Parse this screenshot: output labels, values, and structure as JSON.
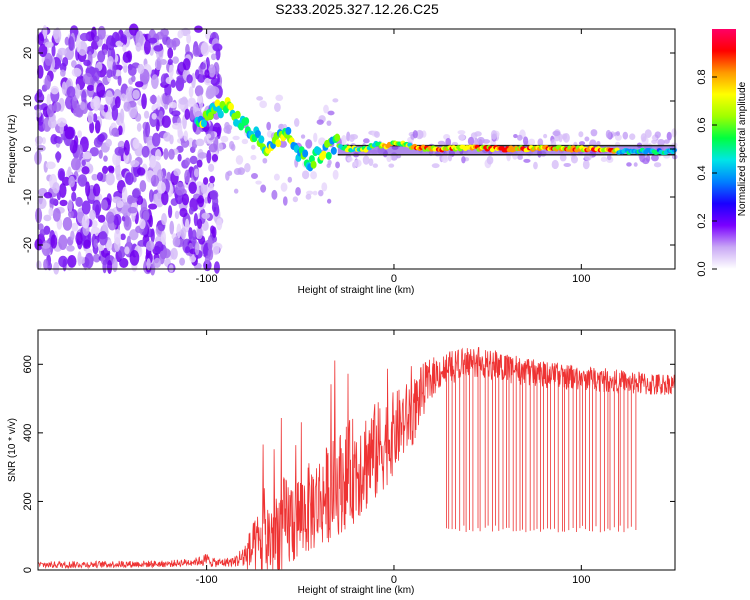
{
  "chart_data": [
    {
      "type": "heatmap",
      "title": "S233.2025.327.12.26.C25",
      "xlabel": "Height of straight line (km)",
      "ylabel": "Frequency (Hz)",
      "xlim": [
        -190,
        150
      ],
      "ylim": [
        -25,
        25
      ],
      "x_ticks": [
        -100,
        0,
        100
      ],
      "y_ticks": [
        -20,
        -10,
        0,
        10,
        20
      ],
      "colorbar": {
        "label": "Normalized spectral amplitude",
        "range": [
          0,
          1
        ],
        "ticks": [
          "0.0",
          "0.2",
          "0.4",
          "0.6",
          "0.8"
        ],
        "colors": [
          "#ffffff",
          "#c9a8f5",
          "#7a00ff",
          "#1a00ff",
          "#0080ff",
          "#00e6e6",
          "#00ff40",
          "#a0ff00",
          "#ffff00",
          "#ff9900",
          "#ff0000",
          "#ff0066"
        ]
      },
      "ridge_line": {
        "x": [
          -105,
          -97,
          -90,
          -85,
          -80,
          -75,
          -70,
          -65,
          -60,
          -55,
          -50,
          -45,
          -40,
          -35,
          -30,
          -25,
          -20,
          -15,
          -10,
          -5,
          0,
          5,
          10,
          20,
          40,
          60,
          80,
          100,
          115,
          120,
          150
        ],
        "y": [
          5,
          8,
          9,
          7,
          5,
          3,
          1,
          0,
          4,
          2,
          -1,
          -3,
          -1,
          0,
          1,
          0,
          0,
          0,
          1,
          0.5,
          1.5,
          1,
          0.5,
          0,
          0.2,
          0,
          0.1,
          0,
          0,
          -0.5,
          -0.5
        ]
      },
      "noise_region_x": [
        -190,
        -105
      ],
      "clean_line_x": [
        -30,
        150
      ]
    },
    {
      "type": "line",
      "xlabel": "Height of straight line (km)",
      "ylabel": "SNR (10 * v/v)",
      "xlim": [
        -190,
        150
      ],
      "ylim": [
        0,
        700
      ],
      "x_ticks": [
        -100,
        0,
        100
      ],
      "y_ticks": [
        0,
        200,
        400,
        600
      ],
      "series": [
        {
          "name": "SNR",
          "color": "#ee3333",
          "envelope": {
            "x": [
              -190,
              -120,
              -105,
              -100,
              -95,
              -85,
              -80,
              -70,
              -60,
              -50,
              -40,
              -30,
              -20,
              -10,
              0,
              10,
              15,
              20,
              25,
              30,
              40,
              50,
              60,
              70,
              80,
              100,
              120,
              140,
              150
            ],
            "base": [
              15,
              18,
              25,
              30,
              20,
              25,
              40,
              80,
              120,
              160,
              200,
              250,
              300,
              340,
              400,
              460,
              520,
              560,
              580,
              590,
              610,
              600,
              590,
              580,
              570,
              560,
              550,
              540,
              545
            ],
            "amp": [
              10,
              10,
              12,
              20,
              12,
              15,
              40,
              120,
              150,
              130,
              140,
              150,
              160,
              150,
              120,
              100,
              80,
              60,
              50,
              50,
              45,
              45,
              45,
              40,
              40,
              35,
              35,
              35,
              30
            ]
          },
          "spikes": {
            "x_range": [
              27,
              130
            ],
            "count": 55,
            "floor": 110
          }
        }
      ]
    }
  ]
}
